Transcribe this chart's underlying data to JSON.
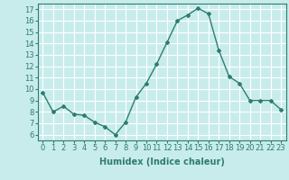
{
  "x": [
    0,
    1,
    2,
    3,
    4,
    5,
    6,
    7,
    8,
    9,
    10,
    11,
    12,
    13,
    14,
    15,
    16,
    17,
    18,
    19,
    20,
    21,
    22,
    23
  ],
  "y": [
    9.7,
    8.0,
    8.5,
    7.8,
    7.7,
    7.1,
    6.7,
    6.0,
    7.1,
    9.3,
    10.5,
    12.2,
    14.1,
    16.0,
    16.5,
    17.1,
    16.6,
    13.4,
    11.1,
    10.5,
    9.0,
    9.0,
    9.0,
    8.2
  ],
  "line_color": "#2e7d6e",
  "marker": "D",
  "marker_size": 2,
  "bg_color": "#c8ecec",
  "grid_color": "#ffffff",
  "xlabel": "Humidex (Indice chaleur)",
  "ylabel_ticks": [
    6,
    7,
    8,
    9,
    10,
    11,
    12,
    13,
    14,
    15,
    16,
    17
  ],
  "ylim": [
    5.5,
    17.5
  ],
  "xlim": [
    -0.5,
    23.5
  ],
  "xticks": [
    0,
    1,
    2,
    3,
    4,
    5,
    6,
    7,
    8,
    9,
    10,
    11,
    12,
    13,
    14,
    15,
    16,
    17,
    18,
    19,
    20,
    21,
    22,
    23
  ],
  "xlabel_fontsize": 7,
  "tick_fontsize": 6,
  "line_width": 1.0
}
